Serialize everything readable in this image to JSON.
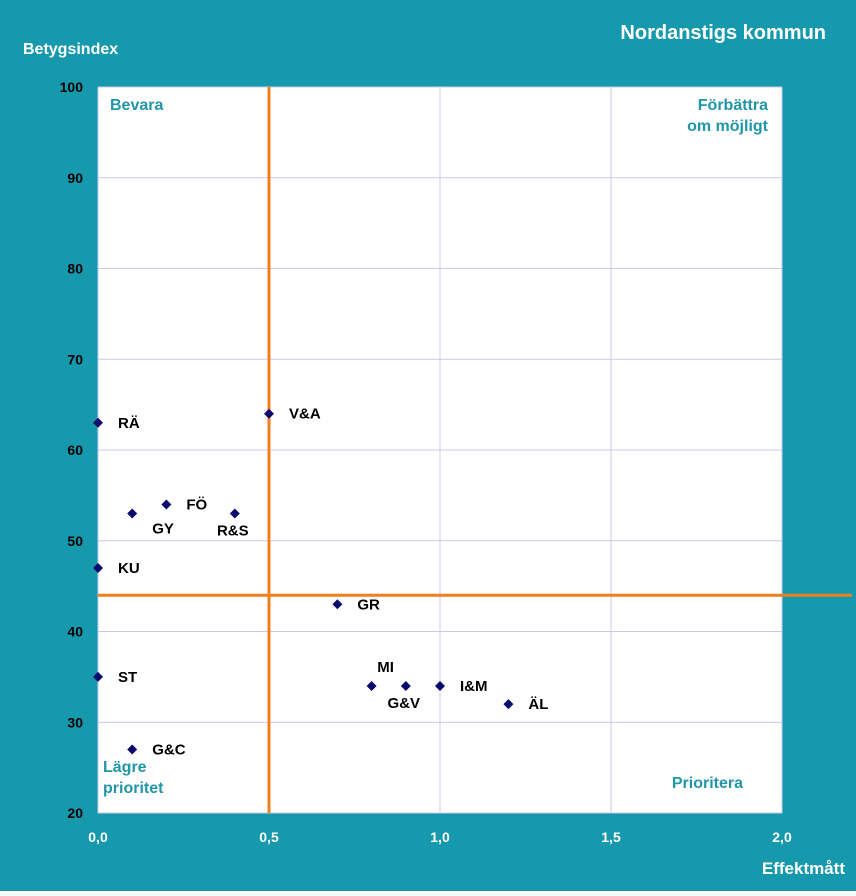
{
  "colors": {
    "frame_background": "#1799AD",
    "plot_background": "#FFFFFF",
    "gridline": "#C9C9E6",
    "quadrant_line": "#F07F1E",
    "marker": "#0A0A6E",
    "quadrant_label": "#2196A8",
    "axis_text_dark": "#000000",
    "axis_text_light": "#FFFFFF"
  },
  "chart_data": {
    "type": "scatter",
    "title": "Nordanstigs kommun",
    "xlabel": "Effektmått",
    "ylabel": "Betygsindex",
    "xlim": [
      0,
      2
    ],
    "ylim": [
      20,
      100
    ],
    "x_ticks": [
      "0,0",
      "0,5",
      "1,0",
      "1,5",
      "2,0"
    ],
    "y_ticks": [
      "20",
      "30",
      "40",
      "50",
      "60",
      "70",
      "80",
      "90",
      "100"
    ],
    "grid": true,
    "reference_lines": {
      "x": 0.5,
      "y": 44
    },
    "quadrant_labels": [
      {
        "lines": [
          "Bevara"
        ],
        "corner": "top-left"
      },
      {
        "lines": [
          "Förbättra",
          "om möjligt"
        ],
        "corner": "top-right"
      },
      {
        "lines": [
          "Lägre",
          "prioritet"
        ],
        "corner": "bottom-left"
      },
      {
        "lines": [
          "Prioritera"
        ],
        "corner": "bottom-right"
      }
    ],
    "points": [
      {
        "label": "RÄ",
        "x": 0.0,
        "y": 63,
        "label_pos": "right"
      },
      {
        "label": "V&A",
        "x": 0.5,
        "y": 64,
        "label_pos": "right"
      },
      {
        "label": "FÖ",
        "x": 0.2,
        "y": 54,
        "label_pos": "right"
      },
      {
        "label": "GY",
        "x": 0.1,
        "y": 53,
        "label_pos": "below-right"
      },
      {
        "label": "R&S",
        "x": 0.4,
        "y": 53,
        "label_pos": "below"
      },
      {
        "label": "KU",
        "x": 0.0,
        "y": 47,
        "label_pos": "right"
      },
      {
        "label": "GR",
        "x": 0.7,
        "y": 43,
        "label_pos": "right"
      },
      {
        "label": "MI",
        "x": 0.8,
        "y": 34,
        "label_pos": "above"
      },
      {
        "label": "G&V",
        "x": 0.9,
        "y": 34,
        "label_pos": "below"
      },
      {
        "label": "I&M",
        "x": 1.0,
        "y": 34,
        "label_pos": "right"
      },
      {
        "label": "ÄL",
        "x": 1.2,
        "y": 32,
        "label_pos": "right"
      },
      {
        "label": "ST",
        "x": 0.0,
        "y": 35,
        "label_pos": "right"
      },
      {
        "label": "G&C",
        "x": 0.1,
        "y": 27,
        "label_pos": "right"
      }
    ]
  }
}
